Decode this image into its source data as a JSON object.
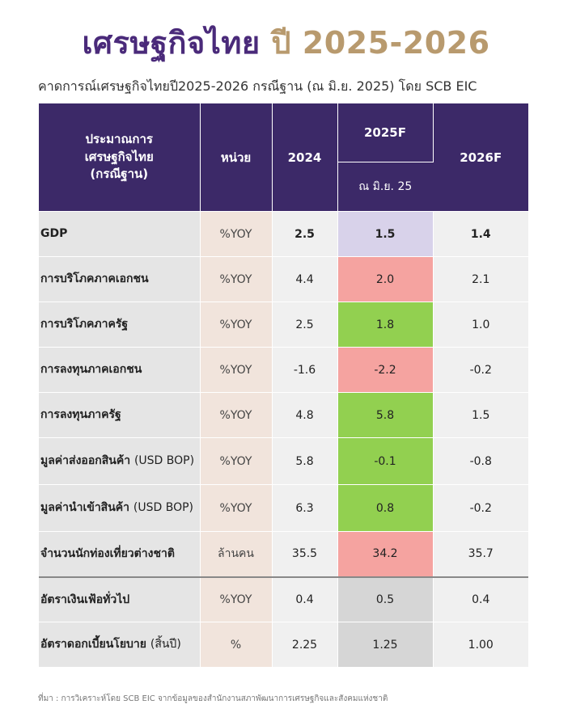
{
  "header": {
    "title_main": "เศรษฐกิจไทย",
    "title_year": "ปี 2025-2026",
    "subtitle": "คาดการณ์เศรษฐกิจไทยปี2025-2026 กรณีฐาน (ณ มิ.ย. 2025) โดย SCB EIC"
  },
  "table": {
    "headers": {
      "indicator_line1": "ประมาณการ",
      "indicator_line2": "เศรษฐกิจไทย",
      "indicator_line3": "(กรณีฐาน)",
      "unit": "หน่วย",
      "y2024": "2024",
      "y2025": "2025F",
      "y2025_sub": "ณ มิ.ย. 25",
      "y2026": "2026F"
    },
    "rows": [
      {
        "label": "GDP",
        "label_paren": "",
        "unit": "%YOY",
        "v2024": "2.5",
        "v2025": "1.5",
        "v2026": "1.4"
      },
      {
        "label": "การบริโภคภาคเอกชน",
        "label_paren": "",
        "unit": "%YOY",
        "v2024": "4.4",
        "v2025": "2.0",
        "v2026": "2.1"
      },
      {
        "label": "การบริโภคภาครัฐ",
        "label_paren": "",
        "unit": "%YOY",
        "v2024": "2.5",
        "v2025": "1.8",
        "v2026": "1.0"
      },
      {
        "label": "การลงทุนภาคเอกชน",
        "label_paren": "",
        "unit": "%YOY",
        "v2024": "-1.6",
        "v2025": "-2.2",
        "v2026": "-0.2"
      },
      {
        "label": "การลงทุนภาครัฐ",
        "label_paren": "",
        "unit": "%YOY",
        "v2024": "4.8",
        "v2025": "5.8",
        "v2026": "1.5"
      },
      {
        "label": "มูลค่าส่งออกสินค้า",
        "label_paren": "(USD BOP)",
        "unit": "%YOY",
        "v2024": "5.8",
        "v2025": "-0.1",
        "v2026": "-0.8"
      },
      {
        "label": "มูลค่านำเข้าสินค้า",
        "label_paren": "(USD BOP)",
        "unit": "%YOY",
        "v2024": "6.3",
        "v2025": "0.8",
        "v2026": "-0.2"
      },
      {
        "label": "จำนวนนักท่องเที่ยวต่างชาติ",
        "label_paren": "",
        "unit": "ล้านคน",
        "v2024": "35.5",
        "v2025": "34.2",
        "v2026": "35.7"
      },
      {
        "label": "อัตราเงินเฟ้อทั่วไป",
        "label_paren": "",
        "unit": "%YOY",
        "v2024": "0.4",
        "v2025": "0.5",
        "v2026": "0.4"
      },
      {
        "label": "อัตราดอกเบี้ยนโยบาย",
        "label_paren": "(สิ้นปี)",
        "unit": "%",
        "v2024": "2.25",
        "v2025": "1.25",
        "v2026": "1.00"
      }
    ],
    "colors": {
      "header_bg": "#3c2968",
      "highlight_purple": "#d8d2ea",
      "highlight_red": "#f5a3a0",
      "highlight_green": "#92d050",
      "highlight_gray": "#d6d6d6"
    }
  },
  "footnote": "ที่มา : การวิเคราะห์โดย SCB EIC จากข้อมูลของสำนักงานสภาพัฒนาการเศรษฐกิจและสังคมแห่งชาติ"
}
